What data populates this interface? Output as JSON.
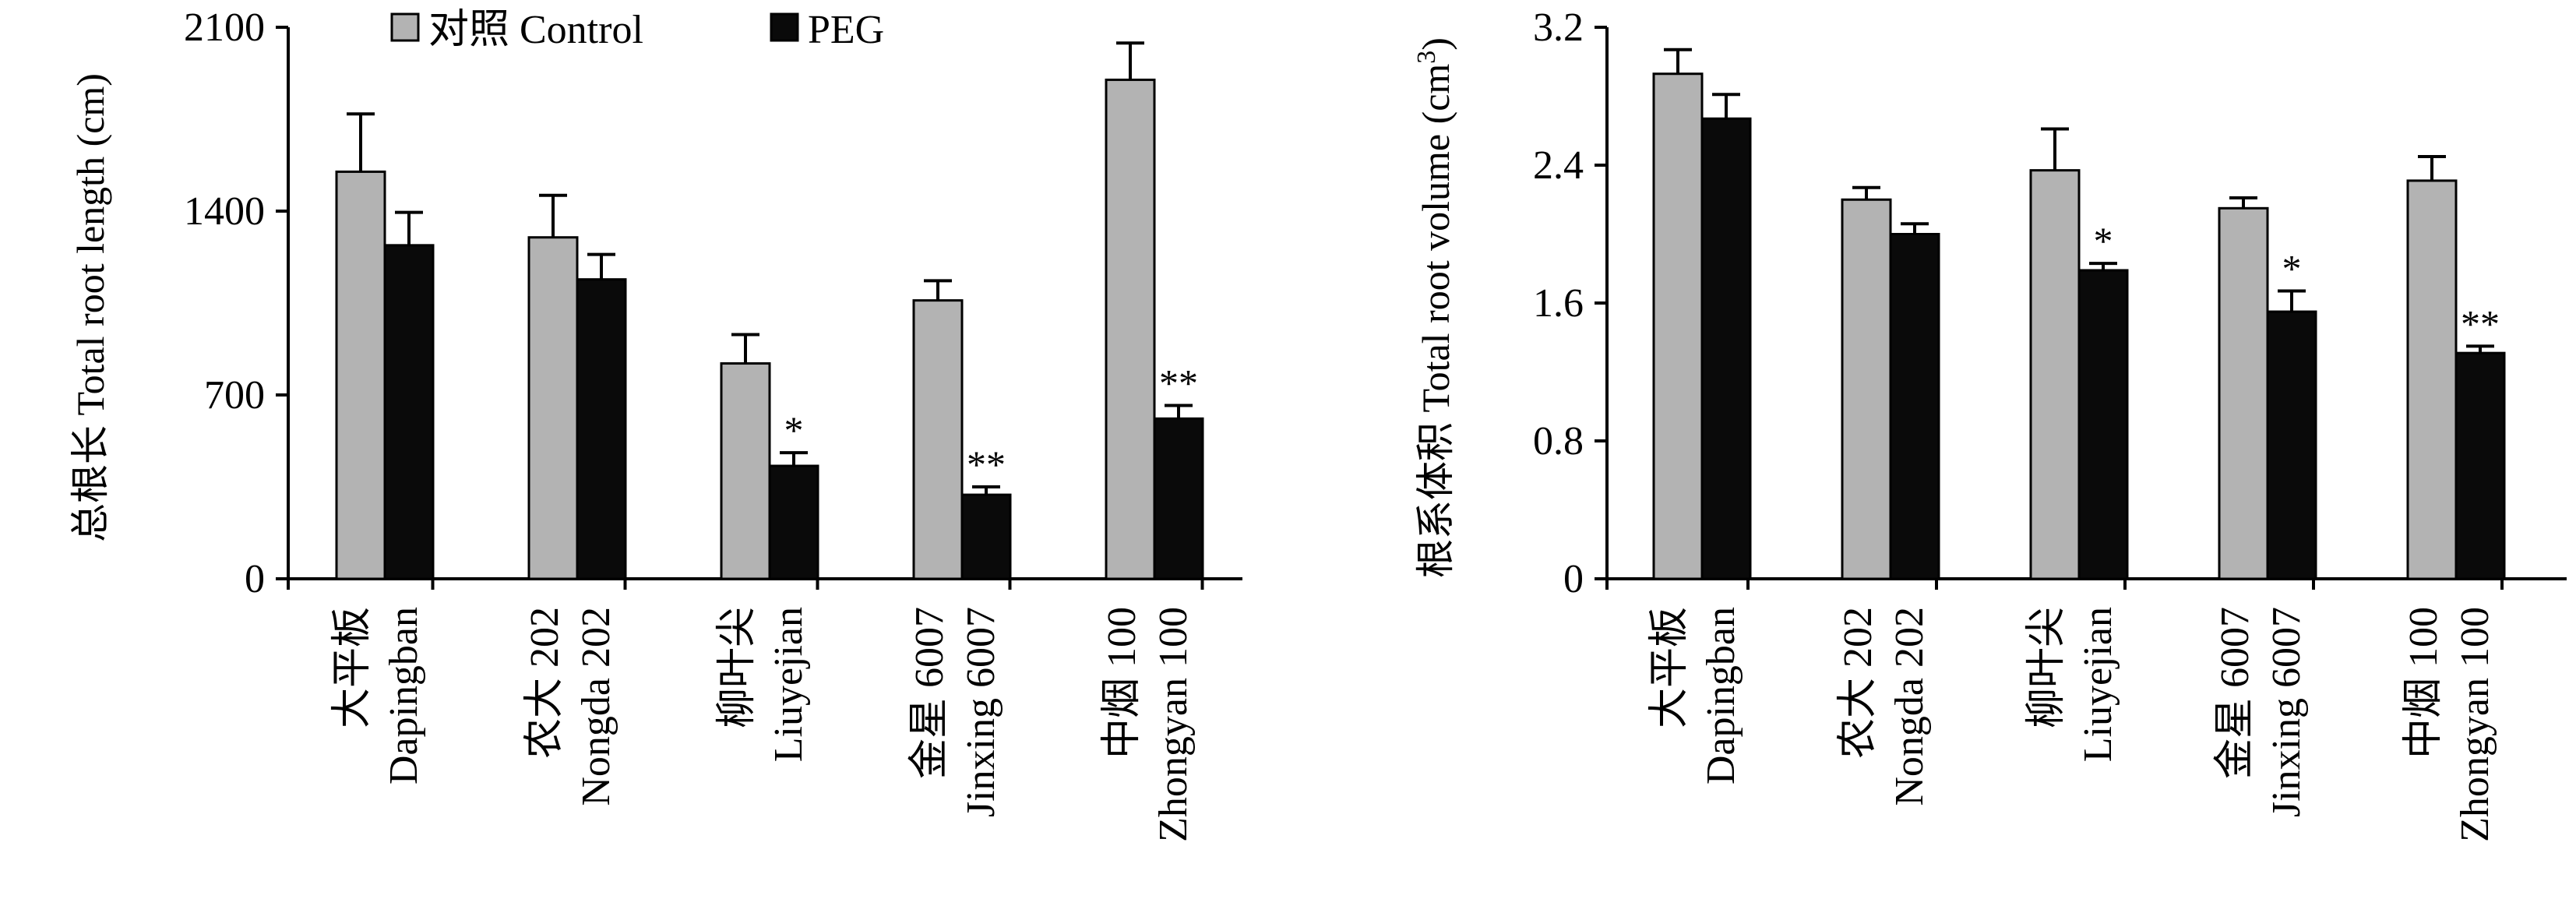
{
  "legend": [
    {
      "label": "对照 Control",
      "color": "#b3b3b3"
    },
    {
      "label": "PEG",
      "color": "#0a0a0a"
    }
  ],
  "chart_data": [
    {
      "type": "bar",
      "ylabel": "总根长 Total root length (cm)",
      "ylim": [
        0,
        2100
      ],
      "yticks": [
        0,
        700,
        1400,
        2100
      ],
      "categories": [
        {
          "cn": "大平板",
          "en": "Dapingban"
        },
        {
          "cn": "农大 202",
          "en": "Nongda 202"
        },
        {
          "cn": "柳叶尖",
          "en": "Liuyejian"
        },
        {
          "cn": "金星 6007",
          "en": "Jinxing 6007"
        },
        {
          "cn": "中烟 100",
          "en": "Zhongyan 100"
        }
      ],
      "series": [
        {
          "name": "对照 Control",
          "color": "#b3b3b3",
          "values": [
            1550,
            1300,
            820,
            1060,
            1900
          ],
          "errors": [
            220,
            160,
            110,
            75,
            140
          ]
        },
        {
          "name": "PEG",
          "color": "#0a0a0a",
          "values": [
            1270,
            1140,
            430,
            320,
            610
          ],
          "errors": [
            125,
            95,
            50,
            30,
            50
          ]
        }
      ],
      "significance": [
        "",
        "",
        "*",
        "**",
        "**"
      ]
    },
    {
      "type": "bar",
      "ylabel_prefix": "根系体积 Total root volume (cm",
      "ylabel_sup": "3",
      "ylabel_suffix": ")",
      "ylim": [
        0,
        3.2
      ],
      "yticks": [
        "0",
        "0.8",
        "1.6",
        "2.4",
        "3.2"
      ],
      "ytick_values": [
        0,
        0.8,
        1.6,
        2.4,
        3.2
      ],
      "categories": [
        {
          "cn": "大平板",
          "en": "Dapingban"
        },
        {
          "cn": "农大 202",
          "en": "Nongda 202"
        },
        {
          "cn": "柳叶尖",
          "en": "Liuyejian"
        },
        {
          "cn": "金星 6007",
          "en": "Jinxing 6007"
        },
        {
          "cn": "中烟 100",
          "en": "Zhongyan 100"
        }
      ],
      "series": [
        {
          "name": "对照 Control",
          "color": "#b3b3b3",
          "values": [
            2.93,
            2.2,
            2.37,
            2.15,
            2.31
          ],
          "errors": [
            0.14,
            0.07,
            0.24,
            0.06,
            0.14
          ]
        },
        {
          "name": "PEG",
          "color": "#0a0a0a",
          "values": [
            2.67,
            2.0,
            1.79,
            1.55,
            1.31
          ],
          "errors": [
            0.14,
            0.06,
            0.04,
            0.12,
            0.04
          ]
        }
      ],
      "significance": [
        "",
        "",
        "*",
        "*",
        "**"
      ]
    }
  ]
}
